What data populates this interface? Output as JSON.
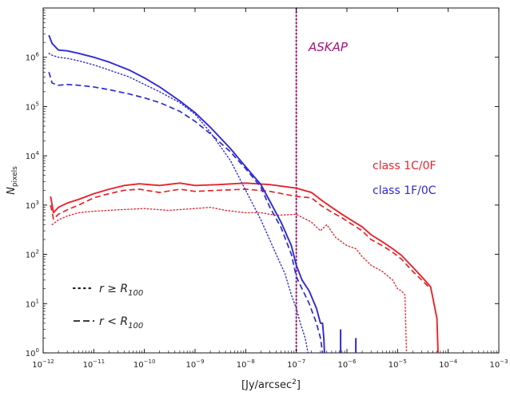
{
  "chart_data": {
    "type": "line",
    "xscale": "log",
    "yscale": "log",
    "xlim": [
      1e-12,
      0.001
    ],
    "ylim": [
      1,
      10000000.0
    ],
    "xlabel": {
      "pre": "[Jy/arcsec",
      "sup": "2",
      "post": "]"
    },
    "ylabel": {
      "main": "N",
      "sub": "pixels"
    },
    "xticks": [
      {
        "value": 1e-12,
        "base": "10",
        "exp": "−12"
      },
      {
        "value": 1e-11,
        "base": "10",
        "exp": "−11"
      },
      {
        "value": 1e-10,
        "base": "10",
        "exp": "−10"
      },
      {
        "value": 1e-09,
        "base": "10",
        "exp": "−9"
      },
      {
        "value": 1e-08,
        "base": "10",
        "exp": "−8"
      },
      {
        "value": 1e-07,
        "base": "10",
        "exp": "−7"
      },
      {
        "value": 1e-06,
        "base": "10",
        "exp": "−6"
      },
      {
        "value": 1e-05,
        "base": "10",
        "exp": "−5"
      },
      {
        "value": 0.0001,
        "base": "10",
        "exp": "−4"
      },
      {
        "value": 0.001,
        "base": "10",
        "exp": "−3"
      }
    ],
    "yticks": [
      {
        "value": 1,
        "base": "10",
        "exp": "0"
      },
      {
        "value": 10,
        "base": "10",
        "exp": "1"
      },
      {
        "value": 100,
        "base": "10",
        "exp": "2"
      },
      {
        "value": 1000,
        "base": "10",
        "exp": "3"
      },
      {
        "value": 10000,
        "base": "10",
        "exp": "4"
      },
      {
        "value": 100000,
        "base": "10",
        "exp": "5"
      },
      {
        "value": 1000000,
        "base": "10",
        "exp": "6"
      }
    ],
    "colors": {
      "class_1C0F": "#e8242b",
      "class_1F0C": "#2e2ad4",
      "askap": "#a0157a"
    },
    "vline": {
      "x": 1e-07,
      "label": "ASKAP",
      "color": "#a0157a"
    },
    "legend_classes": [
      {
        "label": "class 1C/0F",
        "color": "#e8242b"
      },
      {
        "label": "class 1F/0C",
        "color": "#2e2ad4"
      }
    ],
    "legend_styles": [
      {
        "label_pre": "r ≥ R",
        "label_sub": "100",
        "style": "dotted"
      },
      {
        "label_pre": "r < R",
        "label_sub": "100",
        "style": "dashed"
      }
    ],
    "series": [
      {
        "color": "#e8242b",
        "style": "solid",
        "points": [
          [
            1.4e-12,
            1500
          ],
          [
            1.6e-12,
            700
          ],
          [
            2e-12,
            900
          ],
          [
            3e-12,
            1100
          ],
          [
            5e-12,
            1300
          ],
          [
            1e-11,
            1700
          ],
          [
            2e-11,
            2100
          ],
          [
            4e-11,
            2500
          ],
          [
            8e-11,
            2700
          ],
          [
            2e-10,
            2500
          ],
          [
            5e-10,
            2800
          ],
          [
            1e-09,
            2500
          ],
          [
            3e-09,
            2600
          ],
          [
            1e-08,
            2800
          ],
          [
            3e-08,
            2600
          ],
          [
            1e-07,
            2200
          ],
          [
            2e-07,
            1800
          ],
          [
            3e-07,
            1300
          ],
          [
            5e-07,
            900
          ],
          [
            8e-07,
            650
          ],
          [
            1.2e-06,
            500
          ],
          [
            2e-06,
            360
          ],
          [
            3e-06,
            250
          ],
          [
            5e-06,
            180
          ],
          [
            8e-06,
            130
          ],
          [
            1.2e-05,
            95
          ],
          [
            2e-05,
            55
          ],
          [
            3e-05,
            35
          ],
          [
            4.5e-05,
            22
          ],
          [
            6e-05,
            5
          ],
          [
            6.3e-05,
            1
          ]
        ]
      },
      {
        "color": "#e8242b",
        "style": "dashed",
        "points": [
          [
            1.4e-12,
            1000
          ],
          [
            1.6e-12,
            520
          ],
          [
            2e-12,
            650
          ],
          [
            3e-12,
            800
          ],
          [
            5e-12,
            1000
          ],
          [
            1e-11,
            1400
          ],
          [
            2e-11,
            1700
          ],
          [
            4e-11,
            2000
          ],
          [
            8e-11,
            2100
          ],
          [
            2e-10,
            1800
          ],
          [
            5e-10,
            2100
          ],
          [
            1e-09,
            1900
          ],
          [
            3e-09,
            2000
          ],
          [
            1e-08,
            2100
          ],
          [
            3e-08,
            1900
          ],
          [
            1e-07,
            1500
          ],
          [
            2e-07,
            1400
          ],
          [
            3e-07,
            1000
          ],
          [
            5e-07,
            720
          ],
          [
            8e-07,
            550
          ],
          [
            1.2e-06,
            420
          ],
          [
            2e-06,
            300
          ],
          [
            3e-06,
            200
          ],
          [
            5e-06,
            150
          ],
          [
            8e-06,
            110
          ],
          [
            1.2e-05,
            80
          ],
          [
            2e-05,
            45
          ],
          [
            3e-05,
            30
          ],
          [
            4.5e-05,
            20
          ]
        ]
      },
      {
        "color": "#e8242b",
        "style": "dotted",
        "points": [
          [
            1.5e-12,
            400
          ],
          [
            2e-12,
            500
          ],
          [
            3e-12,
            600
          ],
          [
            5e-12,
            700
          ],
          [
            1e-11,
            750
          ],
          [
            3e-11,
            800
          ],
          [
            1e-10,
            850
          ],
          [
            3e-10,
            780
          ],
          [
            1e-09,
            850
          ],
          [
            2e-09,
            900
          ],
          [
            4e-09,
            780
          ],
          [
            1e-08,
            700
          ],
          [
            2e-08,
            700
          ],
          [
            4e-08,
            620
          ],
          [
            1e-07,
            650
          ],
          [
            2e-07,
            450
          ],
          [
            3e-07,
            300
          ],
          [
            4e-07,
            400
          ],
          [
            6e-07,
            220
          ],
          [
            1e-06,
            150
          ],
          [
            1.5e-06,
            130
          ],
          [
            2e-06,
            90
          ],
          [
            3e-06,
            60
          ],
          [
            5e-06,
            45
          ],
          [
            8e-06,
            30
          ],
          [
            1e-05,
            20
          ],
          [
            1.2e-05,
            18
          ],
          [
            1.4e-05,
            15
          ],
          [
            1.5e-05,
            1
          ]
        ]
      },
      {
        "color": "#2e2ad4",
        "style": "solid",
        "points": [
          [
            1.3e-12,
            2800000
          ],
          [
            1.5e-12,
            1900000
          ],
          [
            2e-12,
            1400000
          ],
          [
            3e-12,
            1350000
          ],
          [
            5e-12,
            1200000
          ],
          [
            1e-11,
            1000000
          ],
          [
            2e-11,
            800000
          ],
          [
            5e-11,
            550000
          ],
          [
            1e-10,
            380000
          ],
          [
            2e-10,
            250000
          ],
          [
            5e-10,
            130000
          ],
          [
            1e-09,
            75000
          ],
          [
            2e-09,
            38000
          ],
          [
            5e-09,
            14000
          ],
          [
            1e-08,
            6000
          ],
          [
            2e-08,
            2600
          ],
          [
            3e-08,
            1200
          ],
          [
            5e-08,
            450
          ],
          [
            8e-08,
            150
          ],
          [
            1e-07,
            60
          ],
          [
            1.3e-07,
            30
          ],
          [
            1.8e-07,
            18
          ],
          [
            2.5e-07,
            8
          ],
          [
            3e-07,
            4
          ],
          [
            3.3e-07,
            4
          ],
          [
            3.5e-07,
            2
          ],
          [
            3.6e-07,
            1
          ]
        ]
      },
      {
        "color": "#2e2ad4",
        "style": "dashed",
        "points": [
          [
            1.3e-12,
            500000
          ],
          [
            1.5e-12,
            300000
          ],
          [
            2e-12,
            270000
          ],
          [
            3e-12,
            280000
          ],
          [
            5e-12,
            270000
          ],
          [
            1e-11,
            250000
          ],
          [
            2e-11,
            220000
          ],
          [
            5e-11,
            180000
          ],
          [
            1e-10,
            150000
          ],
          [
            2e-10,
            120000
          ],
          [
            5e-10,
            80000
          ],
          [
            1e-09,
            50000
          ],
          [
            2e-09,
            28000
          ],
          [
            5e-09,
            12000
          ],
          [
            1e-08,
            5500
          ],
          [
            2e-08,
            2300
          ],
          [
            3e-08,
            900
          ],
          [
            5e-08,
            350
          ],
          [
            8e-08,
            100
          ],
          [
            1e-07,
            35
          ],
          [
            1.3e-07,
            20
          ],
          [
            1.8e-07,
            10
          ],
          [
            2.5e-07,
            4
          ],
          [
            3e-07,
            2
          ],
          [
            3.3e-07,
            1
          ]
        ]
      },
      {
        "color": "#2e2ad4",
        "style": "dotted",
        "points": [
          [
            1.3e-12,
            1200000
          ],
          [
            1.5e-12,
            1100000
          ],
          [
            2e-12,
            1000000
          ],
          [
            3e-12,
            950000
          ],
          [
            5e-12,
            850000
          ],
          [
            1e-11,
            700000
          ],
          [
            2e-11,
            550000
          ],
          [
            5e-11,
            400000
          ],
          [
            1e-10,
            280000
          ],
          [
            2e-10,
            200000
          ],
          [
            5e-10,
            120000
          ],
          [
            1e-09,
            70000
          ],
          [
            2e-09,
            30000
          ],
          [
            5e-09,
            8000
          ],
          [
            1e-08,
            2000
          ],
          [
            2e-08,
            500
          ],
          [
            4e-08,
            100
          ],
          [
            6e-08,
            40
          ],
          [
            8e-08,
            15
          ],
          [
            1e-07,
            8
          ],
          [
            1.2e-07,
            4
          ],
          [
            1.5e-07,
            2
          ],
          [
            1.7e-07,
            1
          ]
        ]
      }
    ],
    "spikes": [
      {
        "x": 7.5e-07,
        "y": 3,
        "color": "#2e2ad4"
      },
      {
        "x": 1.5e-06,
        "y": 2,
        "color": "#2e2ad4"
      }
    ]
  }
}
